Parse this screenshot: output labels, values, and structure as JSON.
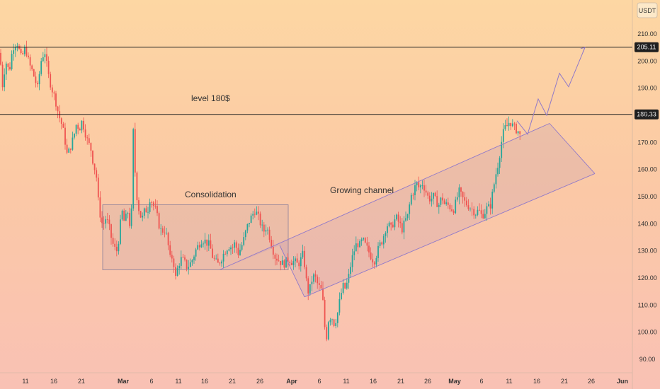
{
  "chart_data": {
    "type": "candlestick",
    "currency": "USDT",
    "y_ticks": [
      210,
      200,
      190,
      180,
      170,
      160,
      150,
      140,
      130,
      120,
      110,
      100,
      90
    ],
    "ylim": [
      85,
      215
    ],
    "x_ticks": [
      "11",
      "16",
      "21",
      "Mar",
      "6",
      "11",
      "16",
      "21",
      "26",
      "Apr",
      "6",
      "11",
      "16",
      "21",
      "26",
      "May",
      "6",
      "11",
      "16",
      "21",
      "26",
      "Jun"
    ],
    "levels": [
      {
        "value": 205.11,
        "label": "205.11"
      },
      {
        "value": 180.33,
        "label": "180.33"
      }
    ],
    "annotations": {
      "level_label": "level 180$",
      "consolidation": "Consolidation",
      "channel": "Growing channel"
    },
    "colors": {
      "up": "#26a69a",
      "down": "#ef5350",
      "drawing": "#9079c9",
      "level": "#222222"
    },
    "price_path": [
      [
        0,
        203
      ],
      [
        3,
        190
      ],
      [
        8,
        200
      ],
      [
        13,
        196
      ],
      [
        18,
        205
      ],
      [
        24,
        207
      ],
      [
        30,
        201
      ],
      [
        36,
        205
      ],
      [
        41,
        199
      ],
      [
        46,
        196
      ],
      [
        53,
        190
      ],
      [
        58,
        200
      ],
      [
        63,
        204
      ],
      [
        68,
        195
      ],
      [
        73,
        190
      ],
      [
        78,
        186
      ],
      [
        83,
        180
      ],
      [
        88,
        176
      ],
      [
        91,
        172
      ],
      [
        95,
        165
      ],
      [
        99,
        168
      ],
      [
        104,
        172
      ],
      [
        108,
        177
      ],
      [
        112,
        175
      ],
      [
        116,
        178
      ],
      [
        120,
        174
      ],
      [
        124,
        170
      ],
      [
        128,
        168
      ],
      [
        132,
        162
      ],
      [
        136,
        158
      ],
      [
        138,
        150
      ],
      [
        141,
        144
      ],
      [
        145,
        139
      ],
      [
        149,
        142
      ],
      [
        153,
        140
      ],
      [
        157,
        135
      ],
      [
        161,
        131
      ],
      [
        165,
        130
      ],
      [
        168,
        135
      ],
      [
        172,
        145
      ],
      [
        176,
        140
      ],
      [
        180,
        145
      ],
      [
        183,
        140
      ],
      [
        186,
        145
      ],
      [
        188,
        175
      ],
      [
        191,
        158
      ],
      [
        194,
        148
      ],
      [
        198,
        143
      ],
      [
        202,
        142
      ],
      [
        205,
        146
      ],
      [
        208,
        144
      ],
      [
        212,
        150
      ],
      [
        216,
        147
      ],
      [
        220,
        145
      ],
      [
        224,
        140
      ],
      [
        228,
        137
      ],
      [
        232,
        138
      ],
      [
        236,
        135
      ],
      [
        240,
        127
      ],
      [
        244,
        128
      ],
      [
        248,
        120
      ],
      [
        252,
        125
      ],
      [
        256,
        127
      ],
      [
        260,
        126
      ],
      [
        264,
        124
      ],
      [
        268,
        125
      ],
      [
        272,
        127
      ],
      [
        276,
        130
      ],
      [
        280,
        132
      ],
      [
        284,
        134
      ],
      [
        288,
        134
      ],
      [
        292,
        133
      ],
      [
        296,
        132
      ],
      [
        300,
        128
      ],
      [
        304,
        126
      ],
      [
        308,
        125
      ],
      [
        312,
        127
      ],
      [
        316,
        129
      ],
      [
        320,
        131
      ],
      [
        324,
        132
      ],
      [
        328,
        131
      ],
      [
        332,
        133
      ],
      [
        336,
        129
      ],
      [
        340,
        131
      ],
      [
        344,
        134
      ],
      [
        348,
        138
      ],
      [
        352,
        141
      ],
      [
        356,
        143
      ],
      [
        360,
        145
      ],
      [
        364,
        143
      ],
      [
        368,
        140
      ],
      [
        372,
        137
      ],
      [
        376,
        139
      ],
      [
        380,
        136
      ],
      [
        384,
        132
      ],
      [
        388,
        128
      ],
      [
        392,
        127
      ],
      [
        396,
        126
      ],
      [
        400,
        125
      ],
      [
        404,
        126
      ],
      [
        408,
        127
      ],
      [
        412,
        126
      ],
      [
        416,
        126
      ],
      [
        420,
        125
      ],
      [
        424,
        126
      ],
      [
        427,
        129
      ],
      [
        430,
        125
      ],
      [
        433,
        118
      ],
      [
        436,
        114
      ],
      [
        440,
        119
      ],
      [
        444,
        121
      ],
      [
        448,
        118
      ],
      [
        452,
        116
      ],
      [
        455,
        115
      ],
      [
        458,
        103
      ],
      [
        461,
        98
      ],
      [
        464,
        105
      ],
      [
        468,
        106
      ],
      [
        472,
        103
      ],
      [
        476,
        106
      ],
      [
        480,
        112
      ],
      [
        484,
        117
      ],
      [
        488,
        116
      ],
      [
        492,
        120
      ],
      [
        496,
        126
      ],
      [
        500,
        130
      ],
      [
        504,
        133
      ],
      [
        508,
        132
      ],
      [
        512,
        134
      ],
      [
        516,
        132
      ],
      [
        520,
        130
      ],
      [
        524,
        128
      ],
      [
        528,
        126
      ],
      [
        532,
        129
      ],
      [
        536,
        132
      ],
      [
        540,
        134
      ],
      [
        544,
        138
      ],
      [
        548,
        140
      ],
      [
        552,
        138
      ],
      [
        556,
        141
      ],
      [
        560,
        142
      ],
      [
        564,
        140
      ],
      [
        568,
        138
      ],
      [
        572,
        141
      ],
      [
        576,
        143
      ],
      [
        580,
        150
      ],
      [
        584,
        152
      ],
      [
        588,
        155
      ],
      [
        592,
        153
      ],
      [
        596,
        155
      ],
      [
        600,
        153
      ],
      [
        604,
        150
      ],
      [
        608,
        149
      ],
      [
        612,
        150
      ],
      [
        616,
        148
      ],
      [
        620,
        147
      ],
      [
        624,
        150
      ],
      [
        628,
        147
      ],
      [
        632,
        147
      ],
      [
        636,
        146
      ],
      [
        640,
        145
      ],
      [
        644,
        148
      ],
      [
        648,
        152
      ],
      [
        652,
        150
      ],
      [
        656,
        148
      ],
      [
        660,
        147
      ],
      [
        664,
        146
      ],
      [
        668,
        145
      ],
      [
        672,
        144
      ],
      [
        676,
        145
      ],
      [
        680,
        143
      ],
      [
        684,
        144
      ],
      [
        688,
        146
      ],
      [
        692,
        146
      ],
      [
        696,
        152
      ],
      [
        700,
        158
      ],
      [
        704,
        163
      ],
      [
        708,
        170
      ],
      [
        712,
        175
      ],
      [
        716,
        176
      ],
      [
        720,
        178
      ],
      [
        724,
        176
      ],
      [
        728,
        175
      ],
      [
        732,
        174
      ],
      [
        735,
        172
      ]
    ]
  }
}
